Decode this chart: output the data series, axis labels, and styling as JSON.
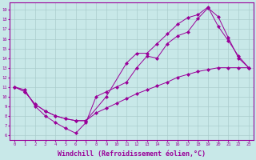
{
  "bg_color": "#c8e8e8",
  "grid_color": "#aacccc",
  "line_color": "#990099",
  "marker_color": "#990099",
  "xlabel": "Windchill (Refroidissement éolien,°C)",
  "xlabel_fontsize": 6,
  "ylabel_values": [
    6,
    7,
    8,
    9,
    10,
    11,
    12,
    13,
    14,
    15,
    16,
    17,
    18,
    19
  ],
  "xlim": [
    -0.5,
    23.5
  ],
  "ylim": [
    5.5,
    19.8
  ],
  "xtick_labels": [
    "0",
    "1",
    "2",
    "3",
    "4",
    "5",
    "6",
    "7",
    "8",
    "9",
    "10",
    "11",
    "12",
    "13",
    "14",
    "15",
    "16",
    "17",
    "18",
    "19",
    "20",
    "21",
    "22",
    "23"
  ],
  "line1_x": [
    0,
    1,
    2,
    3,
    4,
    5,
    6,
    7,
    8,
    9,
    10,
    11,
    12,
    13,
    14,
    15,
    16,
    17,
    18,
    19,
    20,
    21,
    22,
    23
  ],
  "line1_y": [
    11.0,
    10.7,
    9.0,
    8.0,
    7.3,
    6.7,
    6.2,
    7.3,
    10.0,
    10.5,
    11.0,
    11.5,
    13.0,
    14.2,
    14.0,
    15.5,
    16.3,
    16.7,
    18.1,
    19.2,
    18.3,
    16.1,
    14.0,
    13.0
  ],
  "line2_x": [
    0,
    1,
    2,
    3,
    4,
    5,
    6,
    7,
    8,
    9,
    10,
    11,
    12,
    13,
    14,
    15,
    16,
    17,
    18,
    19,
    20,
    21,
    22,
    23
  ],
  "line2_y": [
    11.0,
    10.5,
    9.2,
    8.5,
    8.0,
    7.7,
    7.5,
    7.5,
    8.3,
    8.8,
    9.3,
    9.8,
    10.3,
    10.7,
    11.1,
    11.5,
    12.0,
    12.3,
    12.6,
    12.8,
    13.0,
    13.0,
    13.0,
    13.0
  ],
  "line3_x": [
    0,
    1,
    2,
    3,
    4,
    5,
    6,
    7,
    9,
    11,
    12,
    13,
    14,
    15,
    16,
    17,
    18,
    19,
    20,
    21,
    22,
    23
  ],
  "line3_y": [
    11.0,
    10.5,
    9.2,
    8.5,
    8.0,
    7.7,
    7.5,
    7.5,
    10.0,
    13.5,
    14.5,
    14.5,
    15.5,
    16.5,
    17.5,
    18.2,
    18.5,
    19.3,
    17.3,
    15.8,
    14.2,
    13.0
  ]
}
